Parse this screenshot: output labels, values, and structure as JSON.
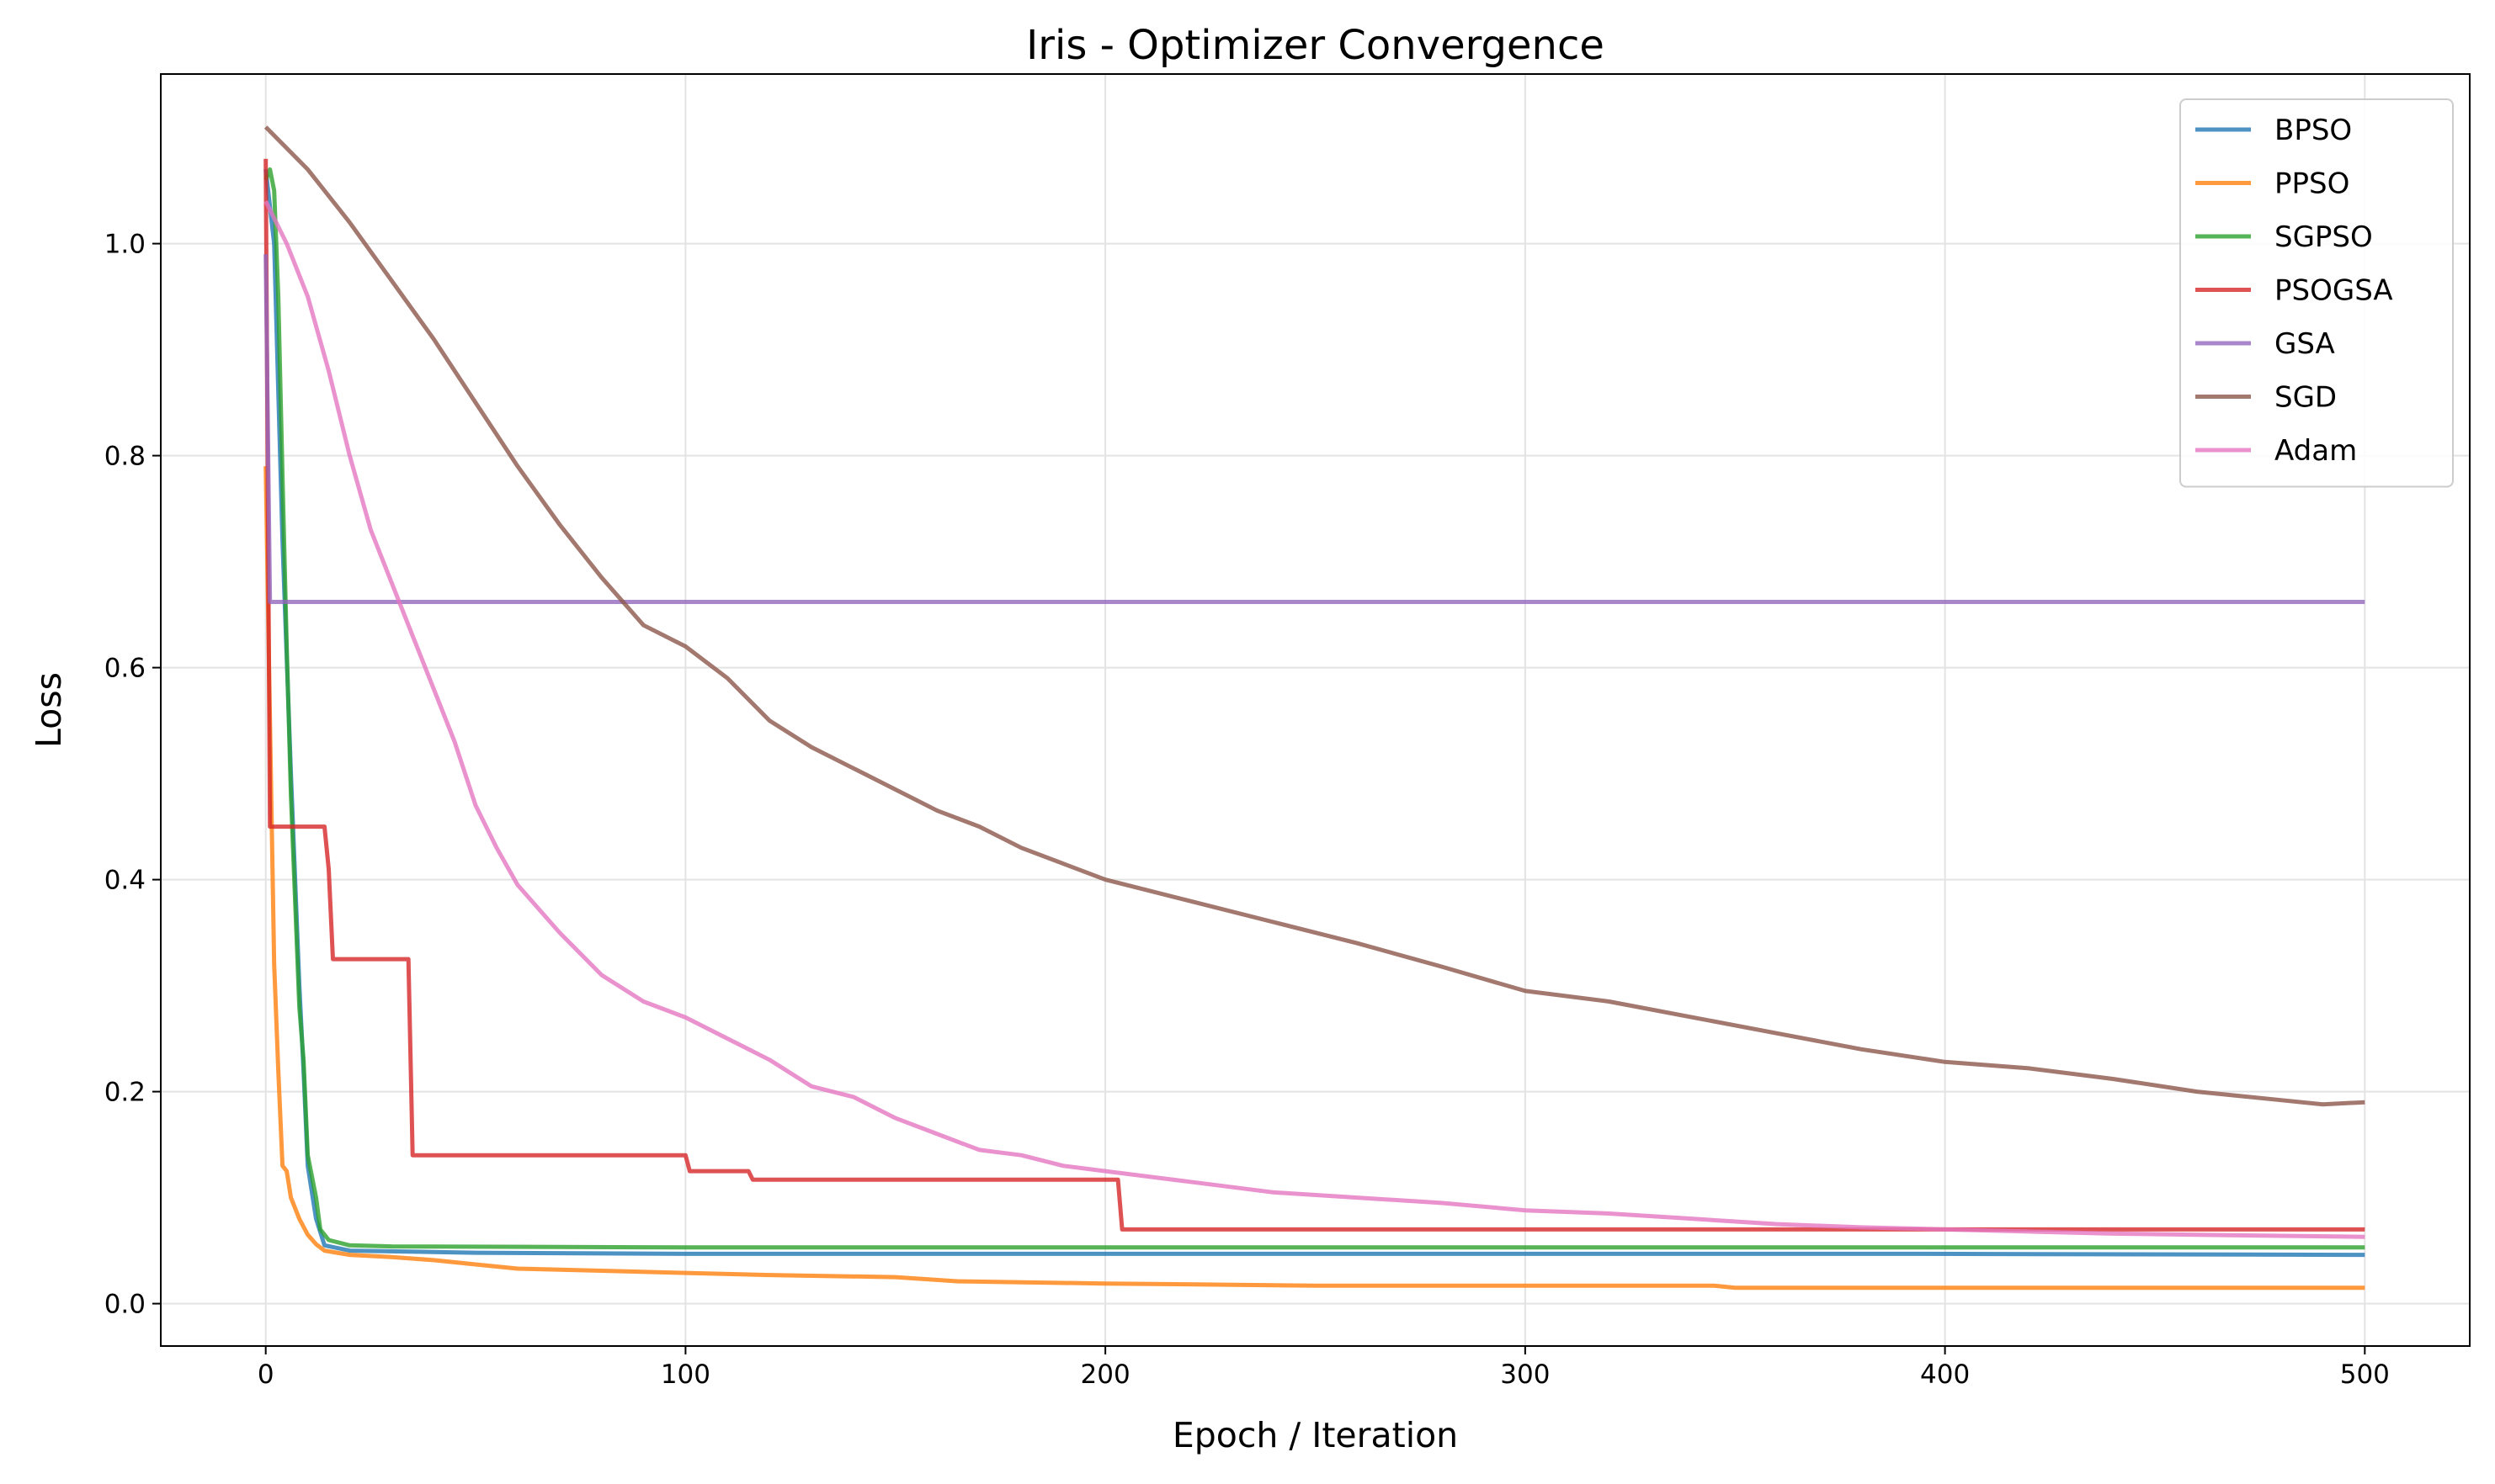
{
  "chart_data": {
    "type": "line",
    "title": "Iris - Optimizer Convergence",
    "xlabel": "Epoch / Iteration",
    "ylabel": "Loss",
    "xlim": [
      -25,
      525
    ],
    "ylim": [
      -0.04,
      1.16
    ],
    "xticks": [
      0,
      100,
      200,
      300,
      400,
      500
    ],
    "yticks": [
      0.0,
      0.2,
      0.4,
      0.6,
      0.8,
      1.0
    ],
    "xtick_labels": [
      "0",
      "100",
      "200",
      "300",
      "400",
      "500"
    ],
    "ytick_labels": [
      "0.0",
      "0.2",
      "0.4",
      "0.6",
      "0.8",
      "1.0"
    ],
    "grid": true,
    "legend_position": "top-right",
    "series": [
      {
        "name": "BPSO",
        "color": "#1f77b4",
        "points": [
          [
            0,
            1.07
          ],
          [
            2,
            1.0
          ],
          [
            4,
            0.72
          ],
          [
            6,
            0.5
          ],
          [
            8,
            0.3
          ],
          [
            9,
            0.22
          ],
          [
            10,
            0.13
          ],
          [
            12,
            0.08
          ],
          [
            14,
            0.055
          ],
          [
            20,
            0.05
          ],
          [
            50,
            0.048
          ],
          [
            100,
            0.047
          ],
          [
            200,
            0.047
          ],
          [
            300,
            0.047
          ],
          [
            392,
            0.047
          ],
          [
            500,
            0.046
          ]
        ]
      },
      {
        "name": "PPSO",
        "color": "#ff7f0e",
        "points": [
          [
            0,
            0.79
          ],
          [
            1,
            0.55
          ],
          [
            2,
            0.32
          ],
          [
            3,
            0.22
          ],
          [
            4,
            0.13
          ],
          [
            5,
            0.125
          ],
          [
            6,
            0.1
          ],
          [
            8,
            0.08
          ],
          [
            10,
            0.065
          ],
          [
            12,
            0.056
          ],
          [
            14,
            0.05
          ],
          [
            20,
            0.046
          ],
          [
            30,
            0.044
          ],
          [
            40,
            0.041
          ],
          [
            50,
            0.037
          ],
          [
            60,
            0.033
          ],
          [
            80,
            0.031
          ],
          [
            100,
            0.029
          ],
          [
            120,
            0.027
          ],
          [
            150,
            0.025
          ],
          [
            165,
            0.021
          ],
          [
            200,
            0.019
          ],
          [
            250,
            0.017
          ],
          [
            300,
            0.017
          ],
          [
            345,
            0.017
          ],
          [
            350,
            0.015
          ],
          [
            400,
            0.015
          ],
          [
            500,
            0.015
          ]
        ]
      },
      {
        "name": "SGPSO",
        "color": "#2ca02c",
        "points": [
          [
            0,
            1.06
          ],
          [
            1,
            1.07
          ],
          [
            2,
            1.05
          ],
          [
            3,
            0.95
          ],
          [
            4,
            0.78
          ],
          [
            5,
            0.62
          ],
          [
            6,
            0.48
          ],
          [
            7,
            0.38
          ],
          [
            8,
            0.28
          ],
          [
            9,
            0.23
          ],
          [
            10,
            0.14
          ],
          [
            12,
            0.1
          ],
          [
            13,
            0.07
          ],
          [
            15,
            0.06
          ],
          [
            20,
            0.055
          ],
          [
            30,
            0.054
          ],
          [
            100,
            0.053
          ],
          [
            200,
            0.053
          ],
          [
            300,
            0.053
          ],
          [
            400,
            0.053
          ],
          [
            500,
            0.053
          ]
        ]
      },
      {
        "name": "PSOGSA",
        "color": "#d62728",
        "points": [
          [
            0,
            1.08
          ],
          [
            1,
            0.45
          ],
          [
            14,
            0.45
          ],
          [
            15,
            0.41
          ],
          [
            16,
            0.325
          ],
          [
            34,
            0.325
          ],
          [
            35,
            0.14
          ],
          [
            100,
            0.14
          ],
          [
            101,
            0.125
          ],
          [
            115,
            0.125
          ],
          [
            116,
            0.117
          ],
          [
            200,
            0.117
          ],
          [
            203,
            0.117
          ],
          [
            204,
            0.07
          ],
          [
            300,
            0.07
          ],
          [
            400,
            0.07
          ],
          [
            500,
            0.07
          ]
        ]
      },
      {
        "name": "GSA",
        "color": "#9467bd",
        "points": [
          [
            0,
            0.99
          ],
          [
            1,
            0.662
          ],
          [
            100,
            0.662
          ],
          [
            200,
            0.662
          ],
          [
            300,
            0.662
          ],
          [
            400,
            0.662
          ],
          [
            500,
            0.662
          ]
        ]
      },
      {
        "name": "SGD",
        "color": "#8c564b",
        "points": [
          [
            0,
            1.11
          ],
          [
            10,
            1.07
          ],
          [
            20,
            1.02
          ],
          [
            30,
            0.965
          ],
          [
            40,
            0.91
          ],
          [
            50,
            0.85
          ],
          [
            60,
            0.79
          ],
          [
            70,
            0.735
          ],
          [
            80,
            0.685
          ],
          [
            90,
            0.64
          ],
          [
            100,
            0.62
          ],
          [
            110,
            0.59
          ],
          [
            120,
            0.55
          ],
          [
            130,
            0.525
          ],
          [
            140,
            0.505
          ],
          [
            150,
            0.485
          ],
          [
            160,
            0.465
          ],
          [
            170,
            0.45
          ],
          [
            180,
            0.43
          ],
          [
            190,
            0.415
          ],
          [
            200,
            0.4
          ],
          [
            220,
            0.38
          ],
          [
            240,
            0.36
          ],
          [
            260,
            0.34
          ],
          [
            280,
            0.318
          ],
          [
            300,
            0.295
          ],
          [
            320,
            0.285
          ],
          [
            340,
            0.27
          ],
          [
            360,
            0.255
          ],
          [
            380,
            0.24
          ],
          [
            400,
            0.228
          ],
          [
            420,
            0.222
          ],
          [
            440,
            0.212
          ],
          [
            460,
            0.2
          ],
          [
            480,
            0.192
          ],
          [
            490,
            0.188
          ],
          [
            500,
            0.19
          ]
        ]
      },
      {
        "name": "Adam",
        "color": "#e377c2",
        "points": [
          [
            0,
            1.04
          ],
          [
            5,
            1.0
          ],
          [
            10,
            0.95
          ],
          [
            15,
            0.88
          ],
          [
            20,
            0.8
          ],
          [
            25,
            0.73
          ],
          [
            30,
            0.68
          ],
          [
            35,
            0.63
          ],
          [
            40,
            0.58
          ],
          [
            45,
            0.53
          ],
          [
            50,
            0.47
          ],
          [
            55,
            0.43
          ],
          [
            60,
            0.395
          ],
          [
            70,
            0.35
          ],
          [
            80,
            0.31
          ],
          [
            90,
            0.285
          ],
          [
            100,
            0.27
          ],
          [
            110,
            0.25
          ],
          [
            120,
            0.23
          ],
          [
            130,
            0.205
          ],
          [
            140,
            0.195
          ],
          [
            150,
            0.175
          ],
          [
            160,
            0.16
          ],
          [
            170,
            0.145
          ],
          [
            180,
            0.14
          ],
          [
            190,
            0.13
          ],
          [
            200,
            0.125
          ],
          [
            220,
            0.115
          ],
          [
            240,
            0.105
          ],
          [
            260,
            0.1
          ],
          [
            280,
            0.095
          ],
          [
            300,
            0.088
          ],
          [
            320,
            0.085
          ],
          [
            340,
            0.08
          ],
          [
            360,
            0.075
          ],
          [
            380,
            0.072
          ],
          [
            400,
            0.07
          ],
          [
            420,
            0.068
          ],
          [
            440,
            0.066
          ],
          [
            460,
            0.065
          ],
          [
            480,
            0.064
          ],
          [
            500,
            0.063
          ]
        ]
      }
    ]
  }
}
